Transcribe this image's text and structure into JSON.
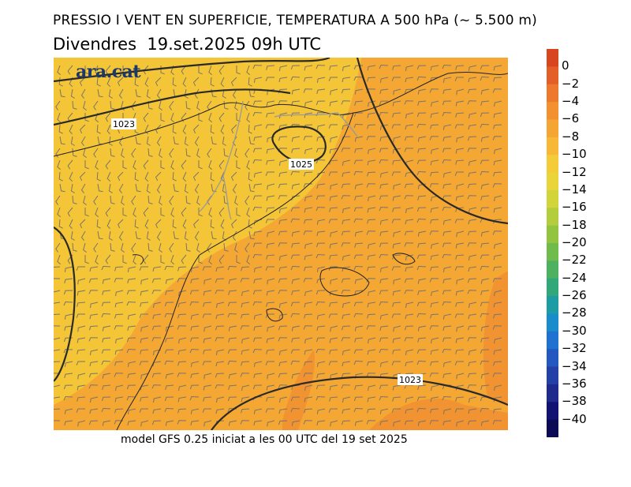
{
  "title": "PRESSIO I VENT EN SUPERFICIE, TEMPERATURA A 500 hPa (~ 5.500 m)",
  "subtitle": "Divendres  19.set.2025 09h UTC",
  "footer": "model GFS 0.25 iniciat a les 00 UTC del 19 set 2025",
  "logo": "ara.cat",
  "isobars": [
    {
      "label": "1023"
    },
    {
      "label": "1025"
    },
    {
      "label": "1023"
    }
  ],
  "colorbar": {
    "labels": [
      "0",
      "−2",
      "−4",
      "−6",
      "−8",
      "−10",
      "−12",
      "−14",
      "−16",
      "−18",
      "−20",
      "−22",
      "−24",
      "−26",
      "−28",
      "−30",
      "−32",
      "−34",
      "−36",
      "−38",
      "−40"
    ],
    "colors": [
      "#d8461f",
      "#e35f27",
      "#ed7a2c",
      "#f39131",
      "#f5a533",
      "#f6b836",
      "#f4cb38",
      "#e9d43a",
      "#d2d43b",
      "#b4cd3c",
      "#92c43f",
      "#6fbb4c",
      "#4db15f",
      "#32a77a",
      "#1e9ca4",
      "#1a8ccc",
      "#1f72cf",
      "#2358c0",
      "#2340a6",
      "#1e2a8c",
      "#121272",
      "#0a0a55"
    ]
  }
}
